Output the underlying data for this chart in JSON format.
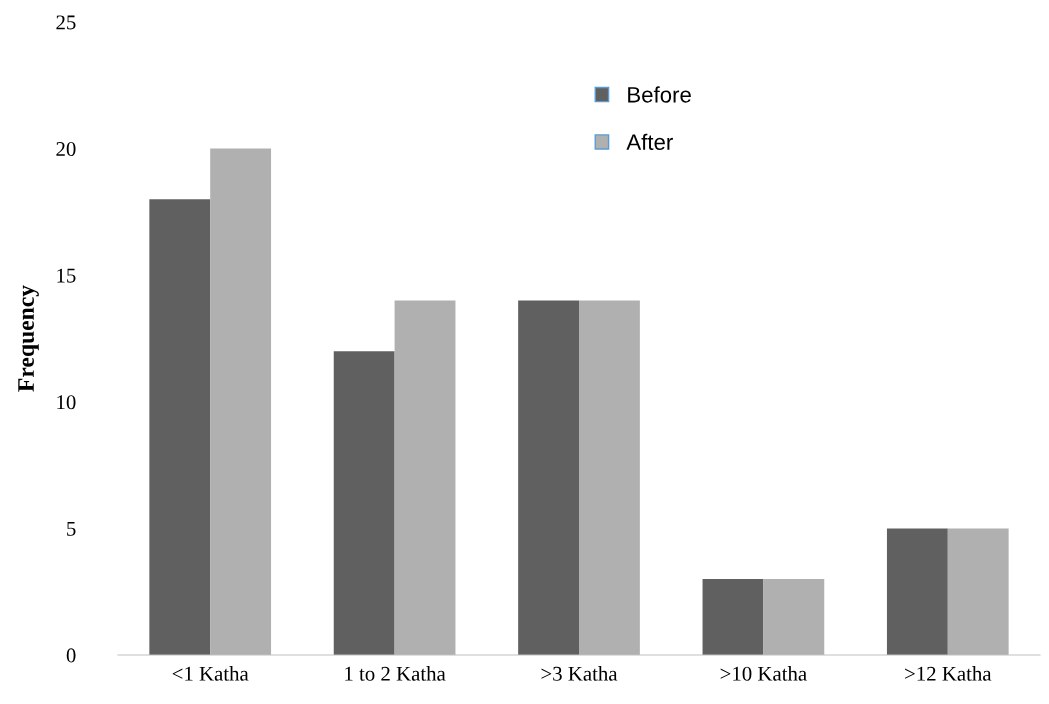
{
  "chart_data": {
    "type": "bar",
    "ylabel": "Frequency",
    "categories": [
      "<1 Katha",
      "1 to 2 Katha",
      ">3 Katha",
      ">10 Katha",
      ">12 Katha"
    ],
    "series": [
      {
        "name": "Before",
        "color": "#606060",
        "values": [
          18,
          12,
          14,
          3,
          5
        ]
      },
      {
        "name": "After",
        "color": "#b0b0b0",
        "values": [
          20,
          14,
          14,
          3,
          5
        ]
      }
    ],
    "ylim": [
      0,
      25
    ],
    "yticks": [
      0,
      5,
      10,
      15,
      20,
      25
    ],
    "grid": false,
    "legend": "top"
  }
}
